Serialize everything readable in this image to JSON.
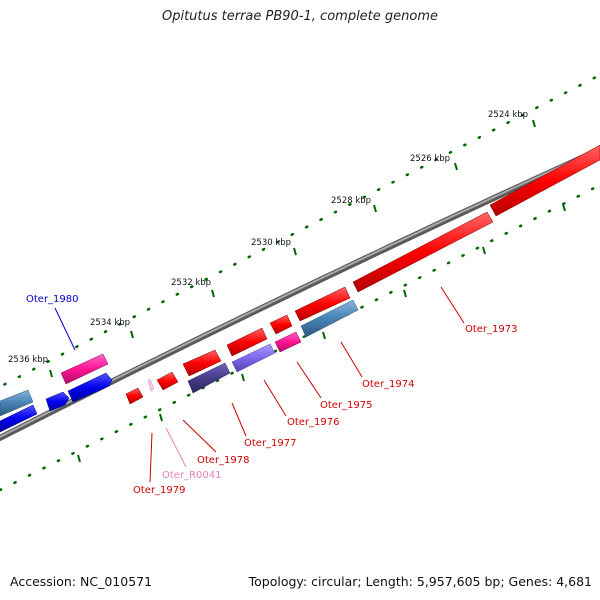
{
  "title": "Opitutus terrae PB90-1, complete genome",
  "footer": {
    "accession": "Accession: NC_010571",
    "stats": "Topology: circular; Length: 5,957,605 bp; Genes: 4,681"
  },
  "ruler": [
    "2524 kbp",
    "2526 kbp",
    "2528 kbp",
    "2530 kbp",
    "2532 kbp",
    "2534 kbp",
    "2536 kbp"
  ],
  "genes": [
    {
      "name": "Oter_1980",
      "color": "#0000cc"
    },
    {
      "name": "Oter_1979",
      "color": "#cc0000"
    },
    {
      "name": "Oter_R0041",
      "color": "#e87fb8"
    },
    {
      "name": "Oter_1978",
      "color": "#cc0000"
    },
    {
      "name": "Oter_1977",
      "color": "#cc0000"
    },
    {
      "name": "Oter_1976",
      "color": "#cc0000"
    },
    {
      "name": "Oter_1975",
      "color": "#cc0000"
    },
    {
      "name": "Oter_1974",
      "color": "#cc0000"
    },
    {
      "name": "Oter_1973",
      "color": "#cc0000"
    }
  ],
  "colors": {
    "cds": "#ff0000",
    "ncrna": "#ff1493",
    "blue": "#0000ee",
    "steelblue": "#4682b4",
    "purple": "#7b68ee",
    "darkslate": "#483d8b",
    "backbone": "#808080",
    "ruler_ticks": "#006400"
  }
}
